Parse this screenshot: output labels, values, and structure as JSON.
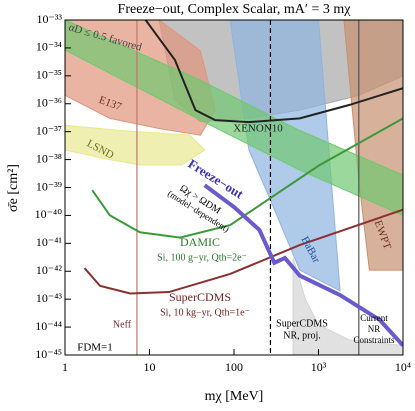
{
  "chart_data": {
    "type": "line",
    "title": "Freeze−out, Complex Scalar, mA′ = 3 mχ",
    "x_label": "mχ [MeV]",
    "y_label": "σ̄e [cm²]",
    "log_x": true,
    "log_y": true,
    "xlim": [
      1,
      10000
    ],
    "ylim": [
      1e-45,
      1e-33
    ],
    "xticks": [
      1,
      10,
      100,
      {
        "value": 1000,
        "label": "10³"
      },
      {
        "value": 10000,
        "label": "10⁴"
      }
    ],
    "yticks": [
      {
        "value": 1e-45,
        "label": "10⁻⁴⁵"
      },
      {
        "value": 1e-44,
        "label": "10⁻⁴⁴"
      },
      {
        "value": 1e-43,
        "label": "10⁻⁴³"
      },
      {
        "value": 1e-42,
        "label": "10⁻⁴²"
      },
      {
        "value": 1e-41,
        "label": "10⁻⁴¹"
      },
      {
        "value": 1e-40,
        "label": "10⁻⁴⁰"
      },
      {
        "value": 1e-39,
        "label": "10⁻³⁹"
      },
      {
        "value": 1e-38,
        "label": "10⁻³⁸"
      },
      {
        "value": 1e-37,
        "label": "10⁻³⁷"
      },
      {
        "value": 1e-36,
        "label": "10⁻³⁶"
      },
      {
        "value": 1e-35,
        "label": "10⁻³⁵"
      },
      {
        "value": 1e-34,
        "label": "10⁻³⁴"
      },
      {
        "value": 1e-33,
        "label": "10⁻³³"
      }
    ],
    "regions": [
      {
        "color": "#a8a8a8",
        "x": [
          13,
          10000,
          10000,
          3000,
          600,
          150,
          40,
          20
        ],
        "y": [
          1e-33,
          1e-33,
          1e-35,
          2e-36,
          5.9e-37,
          3e-37,
          2.3e-37,
          1.4e-36
        ]
      },
      {
        "name": "E137",
        "color": "#e0957a",
        "x": [
          1,
          13,
          40,
          60,
          40,
          13,
          3.4,
          1
        ],
        "y": [
          1e-33,
          1e-33,
          8e-35,
          5.9e-37,
          7.5e-38,
          1.3e-37,
          3e-37,
          2e-36
        ]
      },
      {
        "name": "EWPT",
        "color": "#c89070",
        "x": [
          2000,
          10000,
          10000,
          4000,
          3000
        ],
        "y": [
          1e-33,
          1e-33,
          1.1e-42,
          1.1e-42,
          1.8e-39
        ]
      },
      {
        "name": "BaBar",
        "color": "#8fb4e0",
        "x": [
          90,
          1000,
          1800,
          600,
          270,
          150
        ],
        "y": [
          1e-33,
          1e-33,
          2e-43,
          1.1e-42,
          3.5e-40,
          2.2e-38
        ]
      },
      {
        "name": "αD ≤ 0.5 favored",
        "color": "#70c870",
        "x": [
          1,
          40,
          600,
          10000,
          10000,
          600,
          40,
          1
        ],
        "y": [
          1e-33,
          7e-36,
          1.1e-37,
          2.8e-39,
          1e-40,
          4.2e-39,
          2.6e-37,
          8.4e-35
        ]
      },
      {
        "name": "LSND",
        "color": "#e8e890",
        "x": [
          1,
          4.5,
          30,
          45,
          24,
          7.7,
          3.4,
          1
        ],
        "y": [
          1.7e-37,
          1.1e-37,
          7.5e-38,
          2.2e-38,
          6.4e-39,
          6.4e-39,
          1e-38,
          2.2e-38
        ]
      },
      {
        "name": "SuperCDMS",
        "color": "#d4d4d4",
        "x": [
          500,
          700,
          1000,
          2300,
          10000,
          10000,
          500
        ],
        "y": [
          3e-42,
          1e-43,
          1.2e-44,
          3.5e-45,
          2.2e-45,
          1e-45,
          1e-45
        ]
      }
    ],
    "series": [
      {
        "name": "XENON10",
        "color": "#222222",
        "x": [
          9,
          20,
          35,
          60,
          150,
          600,
          2300,
          10000
        ],
        "values": [
          1e-33,
          3.7e-35,
          5.9e-37,
          2.6e-37,
          2.2e-37,
          3e-37,
          9e-37,
          3.6e-36
        ]
      },
      {
        "name": "DAMIC",
        "color": "#3a9a3a",
        "x": [
          2.1,
          3.4,
          7.7,
          23,
          90,
          1000,
          10000
        ],
        "values": [
          8e-40,
          1e-40,
          2.5e-41,
          1.6e-41,
          4.5e-41,
          6e-39,
          3e-37
        ]
      },
      {
        "name": "SuperCDMS",
        "color": "#8b3030",
        "x": [
          1.7,
          2.6,
          5.9,
          17,
          90,
          600,
          10000
        ],
        "values": [
          1.3e-42,
          3e-43,
          1.6e-43,
          1.8e-43,
          8e-43,
          8.7e-42,
          1.6e-40
        ]
      },
      {
        "name": "Freeze−out",
        "color": "#6a5acd",
        "x": [
          45,
          100,
          200,
          300,
          400,
          600,
          1800,
          5300,
          10000
        ],
        "values": [
          1.2e-39,
          2e-40,
          3e-41,
          2e-42,
          3e-42,
          7e-43,
          1.4e-43,
          1.8e-44,
          2.2e-45
        ]
      }
    ],
    "vlines": [
      {
        "x": 7.1,
        "color": "#c07868"
      },
      {
        "x": 270,
        "color": "#000000",
        "dashed": true
      },
      {
        "x": 3000,
        "color": "#555555"
      }
    ],
    "annotations": [
      "Ωχ > ΩDM",
      "(model−dependent)",
      "Si, 100 g−yr, Qth=2e⁻",
      "Si, 10 kg−yr, Qth=1e⁻",
      "Neff",
      "FDM=1",
      "NR, proj.",
      "Current",
      "NR",
      "Constraints"
    ]
  }
}
